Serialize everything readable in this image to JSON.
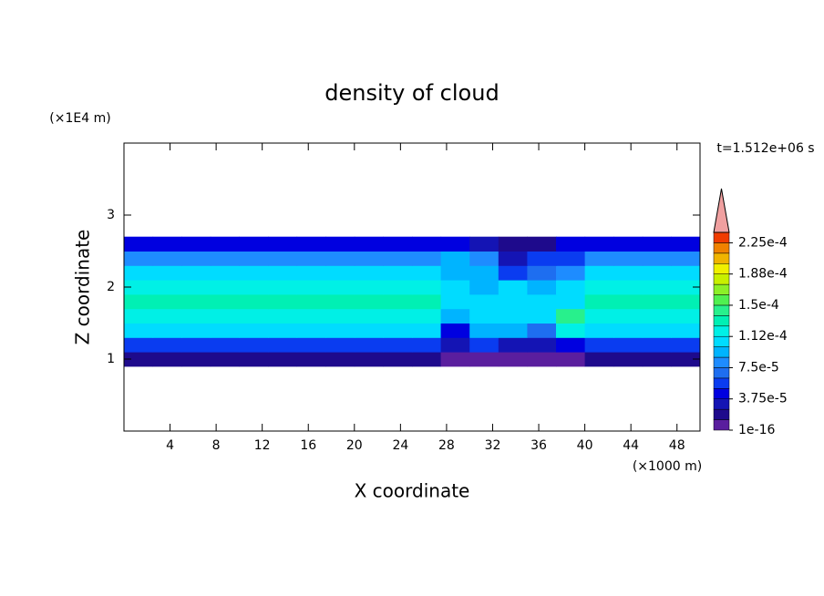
{
  "chart_data": {
    "type": "contour",
    "title": "density of cloud",
    "x_label": "X coordinate",
    "y_label": "Z coordinate",
    "x_unit": "(×1000 m)",
    "y_unit": "(×1E4 m)",
    "time_label": "t=1.512e+06 s",
    "xlim": [
      0,
      50
    ],
    "ylim": [
      0,
      4
    ],
    "xticks": [
      4,
      8,
      12,
      16,
      20,
      24,
      28,
      32,
      36,
      40,
      44,
      48
    ],
    "yticks": [
      1,
      2,
      3
    ],
    "x": [
      1.25,
      3.75,
      6.25,
      8.75,
      11.25,
      13.75,
      16.25,
      18.75,
      21.25,
      23.75,
      26.25,
      28.75,
      31.25,
      33.75,
      36.25,
      38.75,
      41.25,
      43.75,
      46.25,
      48.75
    ],
    "z": [
      1.0,
      1.2,
      1.4,
      1.6,
      1.8,
      2.0,
      2.2,
      2.4,
      2.6
    ],
    "values": [
      [
        2e-05,
        2e-05,
        2e-05,
        2e-05,
        2e-05,
        2e-05,
        2e-05,
        2e-05,
        2e-05,
        2e-05,
        2e-05,
        1e-05,
        1e-05,
        1e-05,
        1e-05,
        1e-05,
        2e-05,
        2e-05,
        2e-05,
        2e-05
      ],
      [
        6e-05,
        6e-05,
        6e-05,
        6e-05,
        6e-05,
        6e-05,
        6e-05,
        6e-05,
        6e-05,
        6e-05,
        6e-05,
        3e-05,
        5e-05,
        3e-05,
        3e-05,
        4e-05,
        6e-05,
        6e-05,
        6e-05,
        6e-05
      ],
      [
        0.0001,
        0.0001,
        0.0001,
        0.0001,
        0.0001,
        0.0001,
        0.0001,
        0.0001,
        0.0001,
        0.0001,
        0.0001,
        4e-05,
        9e-05,
        9e-05,
        7e-05,
        0.00012,
        0.0001,
        0.0001,
        0.0001,
        0.0001
      ],
      [
        0.00012,
        0.00012,
        0.00012,
        0.00012,
        0.00012,
        0.00012,
        0.00012,
        0.00012,
        0.00012,
        0.00012,
        0.00012,
        9e-05,
        0.0001,
        0.0001,
        0.000105,
        0.000145,
        0.00012,
        0.00012,
        0.00012,
        0.00012
      ],
      [
        0.000125,
        0.000125,
        0.000125,
        0.000125,
        0.000125,
        0.000125,
        0.000125,
        0.000125,
        0.000125,
        0.000125,
        0.000125,
        0.0001,
        0.0001,
        0.000105,
        0.0001,
        0.00011,
        0.000125,
        0.000125,
        0.000125,
        0.000125
      ],
      [
        0.000115,
        0.000115,
        0.000115,
        0.000115,
        0.000115,
        0.000115,
        0.000115,
        0.000115,
        0.000115,
        0.000115,
        0.000115,
        0.0001,
        9e-05,
        0.0001,
        9e-05,
        0.0001,
        0.000115,
        0.000115,
        0.000115,
        0.000115
      ],
      [
        0.0001,
        0.0001,
        0.0001,
        0.0001,
        0.0001,
        0.0001,
        0.0001,
        0.0001,
        0.0001,
        0.0001,
        0.0001,
        9e-05,
        9e-05,
        6e-05,
        7e-05,
        8e-05,
        0.0001,
        0.0001,
        0.0001,
        0.0001
      ],
      [
        8e-05,
        8e-05,
        8e-05,
        8e-05,
        8e-05,
        8e-05,
        8e-05,
        8e-05,
        8e-05,
        8e-05,
        8e-05,
        9e-05,
        8e-05,
        3e-05,
        5e-05,
        6e-05,
        8e-05,
        8e-05,
        8e-05,
        8e-05
      ],
      [
        4e-05,
        4e-05,
        4e-05,
        4e-05,
        4e-05,
        4e-05,
        4e-05,
        4e-05,
        4e-05,
        4e-05,
        4e-05,
        4e-05,
        3e-05,
        2e-05,
        2e-05,
        4e-05,
        4e-05,
        4e-05,
        4e-05,
        4e-05
      ]
    ],
    "colorbar": {
      "levels": [
        1e-16,
        1.25e-05,
        2.5e-05,
        3.75e-05,
        5e-05,
        6.25e-05,
        7.5e-05,
        8.75e-05,
        0.0001,
        0.0001125,
        0.000125,
        0.0001375,
        0.00015,
        0.0001625,
        0.000175,
        0.0001875,
        0.0002,
        0.0002125,
        0.000225,
        0.0002375
      ],
      "colors": [
        "#5a1e9e",
        "#1e0a8c",
        "#1414b4",
        "#0000e0",
        "#0a3cf0",
        "#1e6ef0",
        "#1e8cff",
        "#00b4ff",
        "#00dcff",
        "#00f0e6",
        "#00f0b4",
        "#28f08c",
        "#50f050",
        "#8cf028",
        "#c8f000",
        "#f0f000",
        "#f0b400",
        "#f08200",
        "#f03c00"
      ],
      "over_color": "#f0a0a0",
      "ticks": [
        {
          "value": 1e-16,
          "label": "1e-16"
        },
        {
          "value": 3.75e-05,
          "label": "3.75e-5"
        },
        {
          "value": 7.5e-05,
          "label": "7.5e-5"
        },
        {
          "value": 0.0001125,
          "label": "1.12e-4"
        },
        {
          "value": 0.00015,
          "label": "1.5e-4"
        },
        {
          "value": 0.0001875,
          "label": "1.88e-4"
        },
        {
          "value": 0.000225,
          "label": "2.25e-4"
        }
      ]
    }
  }
}
